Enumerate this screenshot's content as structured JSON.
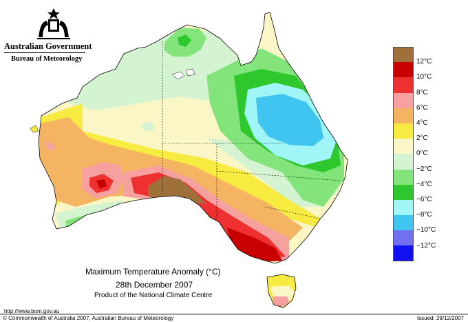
{
  "header": {
    "government": "Australian Government",
    "bureau": "Bureau of Meteorology"
  },
  "map": {
    "title": "Maximum Temperature Anomaly (°C)",
    "date": "28th December 2007",
    "product": "Product of the National Climate Centre"
  },
  "legend": {
    "items": [
      {
        "label": "",
        "color": "#a0703a"
      },
      {
        "label": "12°C",
        "color": "#c80000"
      },
      {
        "label": "10°C",
        "color": "#ee3030"
      },
      {
        "label": "8°C",
        "color": "#f6a0a0"
      },
      {
        "label": "6°C",
        "color": "#f5b462"
      },
      {
        "label": "4°C",
        "color": "#f7ea40"
      },
      {
        "label": "2°C",
        "color": "#fbf6c6"
      },
      {
        "label": "0°C",
        "color": "#d4f3d0"
      },
      {
        "label": "−2°C",
        "color": "#82e47a"
      },
      {
        "label": "−4°C",
        "color": "#2ec82e"
      },
      {
        "label": "−6°C",
        "color": "#a0f6f6"
      },
      {
        "label": "−8°C",
        "color": "#40c4f0"
      },
      {
        "label": "−10°C",
        "color": "#7070f0"
      },
      {
        "label": "−12°C",
        "color": "#1010f0"
      }
    ]
  },
  "footer": {
    "url": "http://www.bom.gov.au",
    "copyright": "© Commonwealth of Australia 2007, Australian Bureau of Meteorology",
    "issued": "Issued: 29/12/2007"
  }
}
